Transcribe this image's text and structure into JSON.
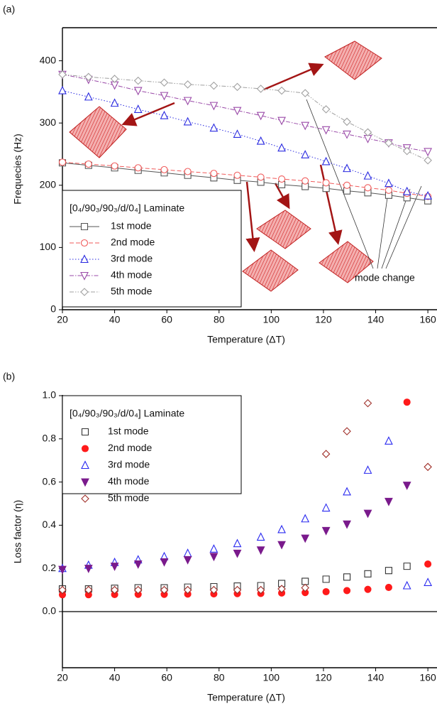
{
  "chart_data": [
    {
      "type": "line",
      "panel_label": "(a)",
      "x_label": "Temperature (ΔT)",
      "y_label": "Frequecies (Hz)",
      "x": [
        20,
        30,
        40,
        49,
        59,
        68,
        78,
        87,
        96,
        104,
        113,
        121,
        129,
        137,
        145,
        152,
        160
      ],
      "xlim": [
        20,
        163.5
      ],
      "xticks": [
        20,
        40,
        60,
        80,
        100,
        120,
        140,
        160
      ],
      "ylim": [
        0,
        452
      ],
      "yticks": [
        0,
        100,
        200,
        300,
        400
      ],
      "legend": "lower left",
      "legend_title": "[0₄/90₃/90₃/d/0₄] Laminate",
      "annotations": [
        "mode change"
      ],
      "series": [
        {
          "name": "1st mode",
          "color": "#555555",
          "marker": "square",
          "filled": false,
          "line_style": "solid",
          "values": [
            236,
            232,
            228,
            224,
            220,
            216,
            212,
            208,
            205,
            201,
            198,
            195,
            191,
            188,
            184,
            180,
            175
          ]
        },
        {
          "name": "2nd mode",
          "color": "#f05a5a",
          "marker": "circle",
          "filled": false,
          "line_style": "dashed",
          "values": [
            237,
            234,
            231,
            228,
            225,
            222,
            219,
            216,
            213,
            210,
            207,
            204,
            200,
            196,
            192,
            187,
            182
          ]
        },
        {
          "name": "3rd mode",
          "color": "#2a2ae0",
          "marker": "triangle-up",
          "filled": false,
          "line_style": "dotted",
          "values": [
            352,
            342,
            332,
            322,
            312,
            302,
            292,
            282,
            271,
            260,
            249,
            238,
            227,
            215,
            203,
            190,
            183
          ]
        },
        {
          "name": "4th mode",
          "color": "#9a4aa8",
          "marker": "triangle-down",
          "filled": false,
          "line_style": "dashdot",
          "values": [
            378,
            370,
            361,
            352,
            344,
            336,
            328,
            320,
            312,
            304,
            296,
            289,
            282,
            275,
            268,
            260,
            254
          ]
        },
        {
          "name": "5th mode",
          "color": "#a0a0a0",
          "marker": "diamond",
          "filled": false,
          "line_style": "dashdotdot",
          "values": [
            378,
            374,
            371,
            368,
            365,
            362,
            360,
            358,
            355,
            352,
            348,
            322,
            302,
            285,
            268,
            255,
            240
          ]
        }
      ]
    },
    {
      "type": "scatter",
      "panel_label": "(b)",
      "x_label": "Temperature (ΔT)",
      "y_label": "Loss factor (η)",
      "x": [
        20,
        30,
        40,
        49,
        59,
        68,
        78,
        87,
        96,
        104,
        113,
        121,
        129,
        137,
        145,
        152,
        160
      ],
      "xlim": [
        20,
        163.5
      ],
      "xticks": [
        20,
        40,
        60,
        80,
        100,
        120,
        140,
        160
      ],
      "ylim": [
        -0.26,
        1.0
      ],
      "yticks": [
        {
          "value": 0,
          "label": "0.0"
        },
        0.2,
        0.4,
        0.6,
        0.8,
        {
          "value": 1,
          "label": "1.0"
        }
      ],
      "legend": "upper left",
      "legend_title": "[0₄/90₃/90₃/d/0₄] Laminate",
      "series": [
        {
          "name": "1st mode",
          "color": "#333333",
          "marker": "square",
          "filled": false,
          "values": [
            0.105,
            0.105,
            0.108,
            0.11,
            0.11,
            0.113,
            0.115,
            0.118,
            0.12,
            0.13,
            0.14,
            0.15,
            0.16,
            0.175,
            0.19,
            0.21,
            null
          ]
        },
        {
          "name": "2nd mode",
          "color": "#ff1a1a",
          "marker": "circle",
          "filled": true,
          "values": [
            0.078,
            0.078,
            0.079,
            0.08,
            0.08,
            0.081,
            0.082,
            0.083,
            0.084,
            0.086,
            0.088,
            0.092,
            0.097,
            0.103,
            0.112,
            0.97,
            0.22
          ]
        },
        {
          "name": "3rd mode",
          "color": "#2a2af0",
          "marker": "triangle-up",
          "filled": false,
          "values": [
            0.2,
            0.215,
            0.228,
            0.24,
            0.255,
            0.27,
            0.29,
            0.315,
            0.345,
            0.38,
            0.43,
            0.48,
            0.555,
            0.655,
            0.79,
            0.12,
            0.135
          ]
        },
        {
          "name": "4th mode",
          "color": "#7a1a8c",
          "marker": "triangle-down",
          "filled": true,
          "values": [
            0.195,
            0.2,
            0.21,
            0.22,
            0.23,
            0.24,
            0.255,
            0.27,
            0.285,
            0.31,
            0.34,
            0.375,
            0.405,
            0.455,
            0.51,
            0.585,
            null
          ]
        },
        {
          "name": "5th mode",
          "color": "#a0302a",
          "marker": "diamond",
          "filled": false,
          "values": [
            0.1,
            0.1,
            0.1,
            0.1,
            0.1,
            0.1,
            0.1,
            0.1,
            0.1,
            0.105,
            0.11,
            0.73,
            0.835,
            0.965,
            null,
            null,
            0.67
          ]
        }
      ]
    }
  ]
}
